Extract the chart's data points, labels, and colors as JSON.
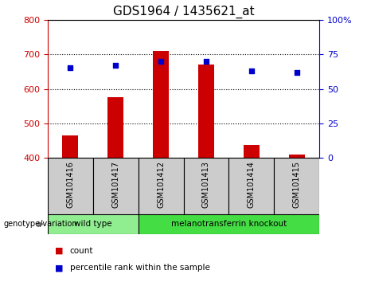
{
  "title": "GDS1964 / 1435621_at",
  "samples": [
    "GSM101416",
    "GSM101417",
    "GSM101412",
    "GSM101413",
    "GSM101414",
    "GSM101415"
  ],
  "bar_values": [
    465,
    575,
    710,
    670,
    437,
    410
  ],
  "bar_bottom": 400,
  "percentile_values": [
    65,
    67,
    70,
    70,
    63,
    62
  ],
  "ylim_left": [
    400,
    800
  ],
  "ylim_right": [
    0,
    100
  ],
  "yticks_left": [
    400,
    500,
    600,
    700,
    800
  ],
  "yticks_right": [
    0,
    25,
    50,
    75,
    100
  ],
  "bar_color": "#cc0000",
  "dot_color": "#0000cc",
  "groups": [
    {
      "label": "wild type",
      "indices": [
        0,
        1
      ],
      "color": "#90ee90"
    },
    {
      "label": "melanotransferrin knockout",
      "indices": [
        2,
        3,
        4,
        5
      ],
      "color": "#44dd44"
    }
  ],
  "group_label": "genotype/variation",
  "legend_count_label": "count",
  "legend_percentile_label": "percentile rank within the sample",
  "background_color": "#ffffff",
  "plot_bg_color": "#ffffff",
  "sample_band_color": "#cccccc",
  "grid_color": "#000000",
  "title_fontsize": 11,
  "tick_fontsize": 8,
  "label_fontsize": 7,
  "axis_color_left": "#cc0000",
  "axis_color_right": "#0000cc",
  "bar_width": 0.35
}
